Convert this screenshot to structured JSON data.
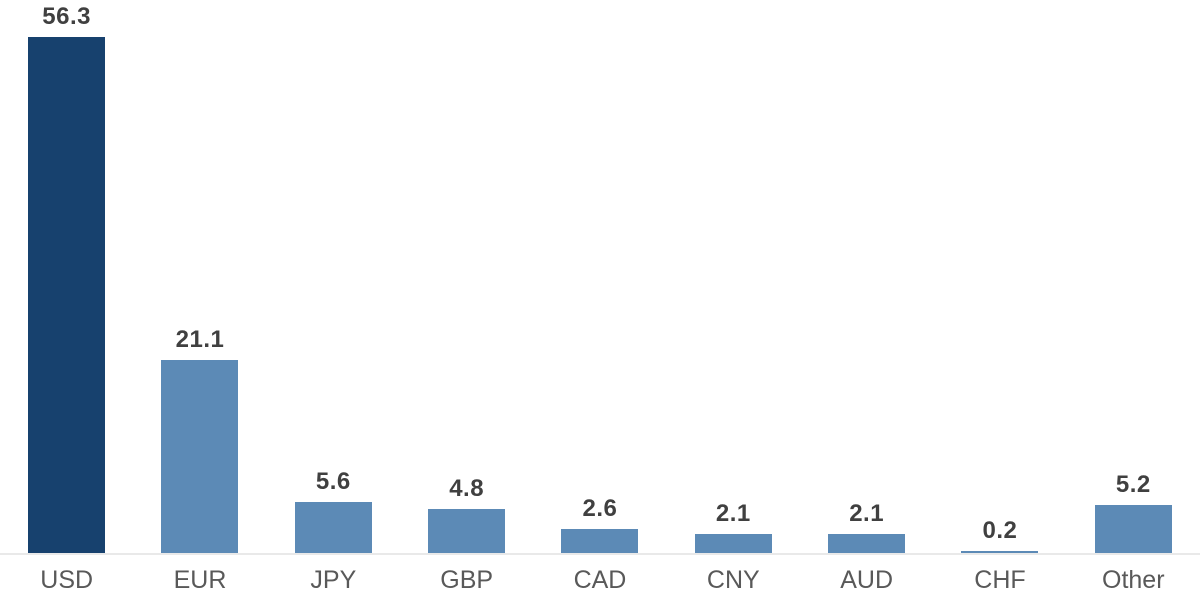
{
  "chart_data": {
    "type": "bar",
    "title": "",
    "xlabel": "",
    "ylabel": "",
    "categories": [
      "USD",
      "EUR",
      "JPY",
      "GBP",
      "CAD",
      "CNY",
      "AUD",
      "CHF",
      "Other"
    ],
    "values": [
      56.3,
      21.1,
      5.6,
      4.8,
      2.6,
      2.1,
      2.1,
      0.2,
      5.2
    ],
    "value_labels": [
      "56.3",
      "21.1",
      "5.6",
      "4.8",
      "2.6",
      "2.1",
      "2.1",
      "0.2",
      "5.2"
    ],
    "ylim": [
      0,
      60
    ],
    "grid": false,
    "legend": false,
    "highlight_index": 0,
    "colors": {
      "highlight_bar": "#17416E",
      "default_bar": "#5C8AB6",
      "value_label": "#404040",
      "category_label": "#595959",
      "axis_line": "#E9E9E9",
      "background": "#FFFFFF"
    }
  }
}
